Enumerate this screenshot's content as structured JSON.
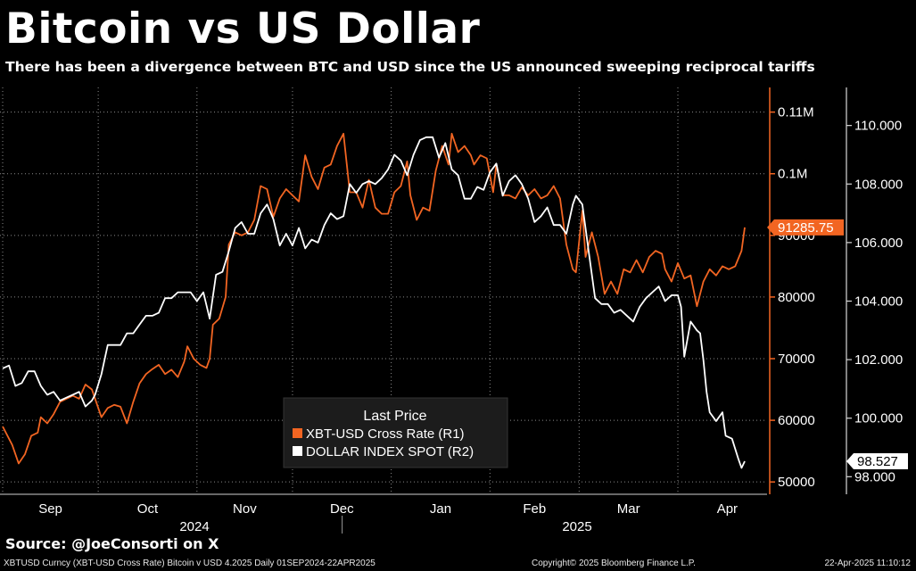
{
  "header": {
    "title": "Bitcoin vs US Dollar",
    "subtitle": "There has been a divergence between BTC and USD since the US announced sweeping reciprocal tariffs"
  },
  "footer": {
    "source": "Source: @JoeConsorti on X",
    "security": "XBTUSD Curncy (XBT-USD Cross Rate) Bitcoin v USD 4.2025   Daily 01SEP2024-22APR2025",
    "copyright": "Copyright© 2025 Bloomberg Finance L.P.",
    "timestamp": "22-Apr-2025 11:10:12"
  },
  "chart_data": {
    "type": "line",
    "x_range": [
      "2024-09-01",
      "2025-04-22"
    ],
    "x_months": [
      {
        "label": "Sep",
        "date": "2024-09-01"
      },
      {
        "label": "Oct",
        "date": "2024-10-01"
      },
      {
        "label": "Nov",
        "date": "2024-11-01"
      },
      {
        "label": "Dec",
        "date": "2024-12-01"
      },
      {
        "label": "Jan",
        "date": "2025-01-01"
      },
      {
        "label": "Feb",
        "date": "2025-02-01"
      },
      {
        "label": "Mar",
        "date": "2025-03-01"
      },
      {
        "label": "Apr",
        "date": "2025-04-01"
      }
    ],
    "x_years": [
      "2024",
      "2025"
    ],
    "left_axis_ticks": [
      "0.11M",
      "0.1M",
      "90000",
      "80000",
      "70000",
      "60000",
      "50000"
    ],
    "left_axis_values": [
      110000,
      100000,
      90000,
      80000,
      70000,
      60000,
      50000
    ],
    "left_ylim": [
      48000,
      114000
    ],
    "right_axis_ticks": [
      "110.000",
      "108.000",
      "106.000",
      "104.000",
      "102.000",
      "100.000",
      "98.000"
    ],
    "right_axis_values": [
      110,
      108,
      106,
      104,
      102,
      100,
      98
    ],
    "right_ylim": [
      97.4,
      111.3
    ],
    "grid": true,
    "legend_position": "bottom-center",
    "legend_title": "Last Price",
    "colors": {
      "btc": "#f26522",
      "dxy": "#ffffff",
      "grid": "#ffffff"
    },
    "series": [
      {
        "name": "XBT-USD Cross Rate  (R1)",
        "axis": "left",
        "color": "#f26522",
        "last_label": "91285.75",
        "points": [
          [
            "2024-09-01",
            59000
          ],
          [
            "2024-09-04",
            56000
          ],
          [
            "2024-09-06",
            53000
          ],
          [
            "2024-09-08",
            54500
          ],
          [
            "2024-09-10",
            57500
          ],
          [
            "2024-09-12",
            58000
          ],
          [
            "2024-09-13",
            60500
          ],
          [
            "2024-09-15",
            59500
          ],
          [
            "2024-09-17",
            61000
          ],
          [
            "2024-09-19",
            63000
          ],
          [
            "2024-09-21",
            63500
          ],
          [
            "2024-09-23",
            64000
          ],
          [
            "2024-09-25",
            63500
          ],
          [
            "2024-09-27",
            65800
          ],
          [
            "2024-09-29",
            65000
          ],
          [
            "2024-09-30",
            63500
          ],
          [
            "2024-10-02",
            60500
          ],
          [
            "2024-10-04",
            62000
          ],
          [
            "2024-10-06",
            62500
          ],
          [
            "2024-10-08",
            62200
          ],
          [
            "2024-10-10",
            59500
          ],
          [
            "2024-10-12",
            63000
          ],
          [
            "2024-10-14",
            66000
          ],
          [
            "2024-10-16",
            67500
          ],
          [
            "2024-10-18",
            68300
          ],
          [
            "2024-10-20",
            69000
          ],
          [
            "2024-10-22",
            67500
          ],
          [
            "2024-10-24",
            68200
          ],
          [
            "2024-10-26",
            67000
          ],
          [
            "2024-10-28",
            69500
          ],
          [
            "2024-10-29",
            72000
          ],
          [
            "2024-10-31",
            70000
          ],
          [
            "2024-11-02",
            69000
          ],
          [
            "2024-11-04",
            68500
          ],
          [
            "2024-11-05",
            70000
          ],
          [
            "2024-11-06",
            75500
          ],
          [
            "2024-11-08",
            76500
          ],
          [
            "2024-11-10",
            80000
          ],
          [
            "2024-11-11",
            88500
          ],
          [
            "2024-11-13",
            90500
          ],
          [
            "2024-11-15",
            90000
          ],
          [
            "2024-11-17",
            90500
          ],
          [
            "2024-11-19",
            92500
          ],
          [
            "2024-11-21",
            98000
          ],
          [
            "2024-11-23",
            97500
          ],
          [
            "2024-11-25",
            93000
          ],
          [
            "2024-11-27",
            96000
          ],
          [
            "2024-11-29",
            97500
          ],
          [
            "2024-12-01",
            96500
          ],
          [
            "2024-12-03",
            95500
          ],
          [
            "2024-12-05",
            103000
          ],
          [
            "2024-12-07",
            99500
          ],
          [
            "2024-12-09",
            97500
          ],
          [
            "2024-12-11",
            101000
          ],
          [
            "2024-12-13",
            101500
          ],
          [
            "2024-12-15",
            104500
          ],
          [
            "2024-12-17",
            106500
          ],
          [
            "2024-12-19",
            97000
          ],
          [
            "2024-12-21",
            97000
          ],
          [
            "2024-12-23",
            94500
          ],
          [
            "2024-12-25",
            99000
          ],
          [
            "2024-12-27",
            94500
          ],
          [
            "2024-12-29",
            93500
          ],
          [
            "2024-12-31",
            93500
          ],
          [
            "2025-01-02",
            97000
          ],
          [
            "2025-01-04",
            98000
          ],
          [
            "2025-01-06",
            102000
          ],
          [
            "2025-01-07",
            96500
          ],
          [
            "2025-01-09",
            92500
          ],
          [
            "2025-01-11",
            94500
          ],
          [
            "2025-01-13",
            94000
          ],
          [
            "2025-01-15",
            100500
          ],
          [
            "2025-01-17",
            104500
          ],
          [
            "2025-01-19",
            101500
          ],
          [
            "2025-01-20",
            106500
          ],
          [
            "2025-01-22",
            103500
          ],
          [
            "2025-01-24",
            104500
          ],
          [
            "2025-01-26",
            103000
          ],
          [
            "2025-01-27",
            101500
          ],
          [
            "2025-01-29",
            103000
          ],
          [
            "2025-01-31",
            102500
          ],
          [
            "2025-02-02",
            97000
          ],
          [
            "2025-02-03",
            101500
          ],
          [
            "2025-02-05",
            96500
          ],
          [
            "2025-02-07",
            96500
          ],
          [
            "2025-02-09",
            96000
          ],
          [
            "2025-02-11",
            97800
          ],
          [
            "2025-02-13",
            96500
          ],
          [
            "2025-02-15",
            97500
          ],
          [
            "2025-02-17",
            96000
          ],
          [
            "2025-02-19",
            96500
          ],
          [
            "2025-02-21",
            98000
          ],
          [
            "2025-02-23",
            96000
          ],
          [
            "2025-02-25",
            88500
          ],
          [
            "2025-02-27",
            84500
          ],
          [
            "2025-02-28",
            84000
          ],
          [
            "2025-03-02",
            94000
          ],
          [
            "2025-03-03",
            86500
          ],
          [
            "2025-03-05",
            90500
          ],
          [
            "2025-03-07",
            86500
          ],
          [
            "2025-03-09",
            80500
          ],
          [
            "2025-03-11",
            82500
          ],
          [
            "2025-03-13",
            80500
          ],
          [
            "2025-03-15",
            84500
          ],
          [
            "2025-03-17",
            84000
          ],
          [
            "2025-03-19",
            86000
          ],
          [
            "2025-03-21",
            84000
          ],
          [
            "2025-03-23",
            86500
          ],
          [
            "2025-03-25",
            87500
          ],
          [
            "2025-03-27",
            87000
          ],
          [
            "2025-03-28",
            84500
          ],
          [
            "2025-03-30",
            82500
          ],
          [
            "2025-04-01",
            85500
          ],
          [
            "2025-04-03",
            83000
          ],
          [
            "2025-04-05",
            83500
          ],
          [
            "2025-04-07",
            78500
          ],
          [
            "2025-04-09",
            82500
          ],
          [
            "2025-04-11",
            84500
          ],
          [
            "2025-04-13",
            83500
          ],
          [
            "2025-04-15",
            85000
          ],
          [
            "2025-04-17",
            84500
          ],
          [
            "2025-04-19",
            85000
          ],
          [
            "2025-04-21",
            87500
          ],
          [
            "2025-04-22",
            91285.75
          ]
        ]
      },
      {
        "name": "DOLLAR INDEX SPOT  (R2)",
        "axis": "right",
        "color": "#ffffff",
        "last_label": "98.527",
        "points": [
          [
            "2024-09-01",
            101.7
          ],
          [
            "2024-09-03",
            101.8
          ],
          [
            "2024-09-05",
            101.1
          ],
          [
            "2024-09-07",
            101.2
          ],
          [
            "2024-09-09",
            101.6
          ],
          [
            "2024-09-11",
            101.6
          ],
          [
            "2024-09-13",
            101.1
          ],
          [
            "2024-09-15",
            100.8
          ],
          [
            "2024-09-17",
            100.9
          ],
          [
            "2024-09-19",
            100.6
          ],
          [
            "2024-09-21",
            100.7
          ],
          [
            "2024-09-23",
            100.8
          ],
          [
            "2024-09-25",
            100.9
          ],
          [
            "2024-09-27",
            100.4
          ],
          [
            "2024-09-29",
            100.6
          ],
          [
            "2024-09-30",
            100.8
          ],
          [
            "2024-10-02",
            101.5
          ],
          [
            "2024-10-04",
            102.5
          ],
          [
            "2024-10-06",
            102.5
          ],
          [
            "2024-10-08",
            102.5
          ],
          [
            "2024-10-10",
            102.9
          ],
          [
            "2024-10-12",
            102.9
          ],
          [
            "2024-10-14",
            103.2
          ],
          [
            "2024-10-16",
            103.5
          ],
          [
            "2024-10-18",
            103.5
          ],
          [
            "2024-10-20",
            103.6
          ],
          [
            "2024-10-22",
            104.1
          ],
          [
            "2024-10-24",
            104.1
          ],
          [
            "2024-10-26",
            104.3
          ],
          [
            "2024-10-28",
            104.3
          ],
          [
            "2024-10-30",
            104.3
          ],
          [
            "2024-11-01",
            104.0
          ],
          [
            "2024-11-03",
            104.3
          ],
          [
            "2024-11-05",
            103.4
          ],
          [
            "2024-11-07",
            104.9
          ],
          [
            "2024-11-09",
            105.0
          ],
          [
            "2024-11-11",
            105.7
          ],
          [
            "2024-11-13",
            106.5
          ],
          [
            "2024-11-15",
            106.7
          ],
          [
            "2024-11-17",
            106.3
          ],
          [
            "2024-11-19",
            106.3
          ],
          [
            "2024-11-21",
            107.0
          ],
          [
            "2024-11-23",
            107.3
          ],
          [
            "2024-11-25",
            106.8
          ],
          [
            "2024-11-27",
            105.9
          ],
          [
            "2024-11-29",
            106.3
          ],
          [
            "2024-12-01",
            105.9
          ],
          [
            "2024-12-03",
            106.5
          ],
          [
            "2024-12-05",
            105.8
          ],
          [
            "2024-12-07",
            106.1
          ],
          [
            "2024-12-09",
            106.0
          ],
          [
            "2024-12-11",
            106.6
          ],
          [
            "2024-12-13",
            107.0
          ],
          [
            "2024-12-15",
            106.8
          ],
          [
            "2024-12-17",
            106.9
          ],
          [
            "2024-12-19",
            108.0
          ],
          [
            "2024-12-21",
            107.7
          ],
          [
            "2024-12-23",
            108.0
          ],
          [
            "2024-12-25",
            108.1
          ],
          [
            "2024-12-27",
            108.0
          ],
          [
            "2024-12-29",
            108.2
          ],
          [
            "2024-12-31",
            108.5
          ],
          [
            "2025-01-02",
            109.0
          ],
          [
            "2025-01-04",
            108.8
          ],
          [
            "2025-01-06",
            108.3
          ],
          [
            "2025-01-08",
            109.0
          ],
          [
            "2025-01-10",
            109.5
          ],
          [
            "2025-01-12",
            109.6
          ],
          [
            "2025-01-14",
            109.6
          ],
          [
            "2025-01-16",
            108.9
          ],
          [
            "2025-01-18",
            109.4
          ],
          [
            "2025-01-20",
            108.5
          ],
          [
            "2025-01-22",
            108.3
          ],
          [
            "2025-01-24",
            107.5
          ],
          [
            "2025-01-26",
            107.5
          ],
          [
            "2025-01-28",
            107.9
          ],
          [
            "2025-01-30",
            107.8
          ],
          [
            "2025-02-01",
            108.4
          ],
          [
            "2025-02-03",
            108.7
          ],
          [
            "2025-02-05",
            107.6
          ],
          [
            "2025-02-07",
            108.1
          ],
          [
            "2025-02-09",
            108.3
          ],
          [
            "2025-02-11",
            108.0
          ],
          [
            "2025-02-13",
            107.5
          ],
          [
            "2025-02-15",
            106.7
          ],
          [
            "2025-02-17",
            106.9
          ],
          [
            "2025-02-19",
            107.2
          ],
          [
            "2025-02-21",
            106.6
          ],
          [
            "2025-02-23",
            106.6
          ],
          [
            "2025-02-25",
            106.3
          ],
          [
            "2025-02-27",
            107.3
          ],
          [
            "2025-02-28",
            107.6
          ],
          [
            "2025-03-02",
            107.3
          ],
          [
            "2025-03-04",
            105.7
          ],
          [
            "2025-03-06",
            104.1
          ],
          [
            "2025-03-08",
            103.9
          ],
          [
            "2025-03-10",
            103.9
          ],
          [
            "2025-03-12",
            103.6
          ],
          [
            "2025-03-14",
            103.7
          ],
          [
            "2025-03-16",
            103.5
          ],
          [
            "2025-03-18",
            103.3
          ],
          [
            "2025-03-20",
            103.8
          ],
          [
            "2025-03-22",
            104.1
          ],
          [
            "2025-03-24",
            104.3
          ],
          [
            "2025-03-26",
            104.5
          ],
          [
            "2025-03-28",
            104.0
          ],
          [
            "2025-03-30",
            104.2
          ],
          [
            "2025-04-01",
            104.2
          ],
          [
            "2025-04-02",
            103.8
          ],
          [
            "2025-04-03",
            102.1
          ],
          [
            "2025-04-05",
            103.3
          ],
          [
            "2025-04-07",
            103.0
          ],
          [
            "2025-04-08",
            102.9
          ],
          [
            "2025-04-09",
            102.0
          ],
          [
            "2025-04-10",
            100.9
          ],
          [
            "2025-04-11",
            100.2
          ],
          [
            "2025-04-13",
            99.9
          ],
          [
            "2025-04-15",
            100.2
          ],
          [
            "2025-04-16",
            99.4
          ],
          [
            "2025-04-18",
            99.3
          ],
          [
            "2025-04-20",
            98.6
          ],
          [
            "2025-04-21",
            98.3
          ],
          [
            "2025-04-22",
            98.527
          ]
        ]
      }
    ]
  }
}
